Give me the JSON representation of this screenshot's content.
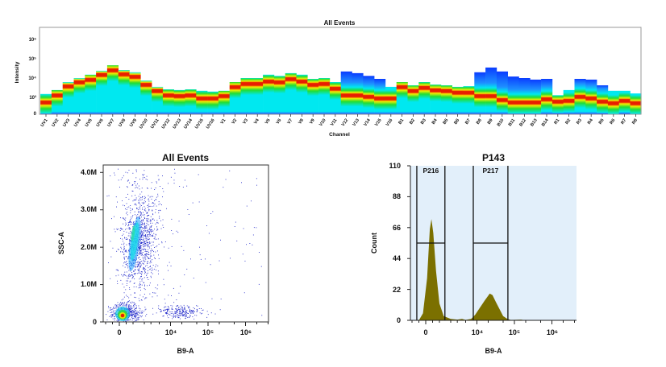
{
  "chart_data": [
    {
      "type": "heatmap",
      "title": "All Events",
      "xlabel": "Channel",
      "ylabel": "Intensity",
      "y_scale": "log (linear near 0)",
      "y_ticks": [
        "0",
        "10³",
        "10⁴",
        "10⁵",
        "10⁶"
      ],
      "colormap": [
        "#0a3cff",
        "#1e8fff",
        "#00e8f0",
        "#22dd33",
        "#f5ee00",
        "#e81e00"
      ],
      "channels": [
        "UV1",
        "UV2",
        "UV3",
        "UV4",
        "UV5",
        "UV6",
        "UV7",
        "UV8",
        "UV9",
        "UV10",
        "UV11",
        "UV12",
        "UV13",
        "UV14",
        "UV15",
        "UV16",
        "V1",
        "V2",
        "V3",
        "V4",
        "V5",
        "V6",
        "V7",
        "V8",
        "V9",
        "V10",
        "V11",
        "V12",
        "V13",
        "V14",
        "V15",
        "V16",
        "B1",
        "B2",
        "B3",
        "B4",
        "B5",
        "B6",
        "B7",
        "B8",
        "B9",
        "B10",
        "B11",
        "B12",
        "B13",
        "B14",
        "R1",
        "R2",
        "R3",
        "R4",
        "R5",
        "R6",
        "R7",
        "R8"
      ],
      "max_intensity": [
        1500,
        2400,
        6200,
        10000,
        15000,
        24000,
        46000,
        26000,
        20000,
        7500,
        3500,
        2600,
        2400,
        2600,
        2200,
        2000,
        2200,
        6200,
        10000,
        10000,
        15000,
        13000,
        18000,
        15000,
        9100,
        10000,
        6200,
        22000,
        18000,
        13000,
        9100,
        3500,
        6200,
        4200,
        6200,
        4600,
        4200,
        3500,
        3800,
        20000,
        35000,
        22000,
        12000,
        10000,
        8300,
        9100,
        1300,
        2400,
        9100,
        8300,
        4200,
        2200,
        2200,
        1600
      ],
      "peak_intensity": [
        700,
        1300,
        3800,
        6200,
        8300,
        15000,
        26000,
        16000,
        12000,
        4600,
        2200,
        1300,
        1200,
        1300,
        950,
        950,
        1200,
        3500,
        5100,
        5100,
        6800,
        6200,
        9100,
        6800,
        4600,
        5100,
        2900,
        1300,
        1300,
        1100,
        950,
        950,
        3500,
        2200,
        3200,
        2400,
        2200,
        1800,
        1800,
        1200,
        1200,
        850,
        700,
        700,
        700,
        900,
        750,
        800,
        1100,
        950,
        750,
        650,
        800,
        650
      ]
    },
    {
      "type": "scatter",
      "title": "All Events",
      "xlabel": "B9-A",
      "ylabel": "SSC-A",
      "x_scale": "biexponential",
      "x_ticks": [
        "0",
        "10⁴",
        "10⁵",
        "10⁶"
      ],
      "y_ticks": [
        "0",
        "1.0M",
        "2.0M",
        "3.0M",
        "4.0M"
      ],
      "ylim": [
        0,
        4200000
      ],
      "point_color": "#1a22c8",
      "populations": [
        {
          "x_range": [
            -600,
            1500
          ],
          "y_range": [
            0,
            500000
          ],
          "count": 500,
          "density": "high"
        },
        {
          "x_range": [
            200,
            4000
          ],
          "y_range": [
            900000,
            3400000
          ],
          "count": 900,
          "density": "medium"
        },
        {
          "x_range": [
            5000,
            70000
          ],
          "y_range": [
            100000,
            450000
          ],
          "count": 220,
          "density": "low"
        },
        {
          "x_range": [
            -500,
            8000
          ],
          "y_range": [
            300000,
            4100000
          ],
          "count": 300,
          "density": "low"
        },
        {
          "x_range": [
            3000,
            3000000
          ],
          "y_range": [
            0,
            4100000
          ],
          "count": 80,
          "density": "sparse"
        }
      ]
    },
    {
      "type": "area",
      "title": "P143",
      "xlabel": "B9-A",
      "ylabel": "Count",
      "x_scale": "biexponential",
      "x_ticks": [
        "0",
        "10⁴",
        "10⁵",
        "10⁶"
      ],
      "y_ticks": [
        "0",
        "22",
        "44",
        "66",
        "88",
        "110"
      ],
      "ylim": [
        0,
        110
      ],
      "fill_color": "#7b7000",
      "background_color": "#e2effa",
      "x": [
        -700,
        -500,
        -200,
        100,
        300,
        420,
        550,
        750,
        1000,
        1300,
        2000,
        3000,
        4000,
        5000,
        7000,
        9000,
        12000,
        16000,
        22000,
        26000,
        32000,
        40000,
        50000,
        65000,
        80000,
        150000,
        200000,
        4000000
      ],
      "y": [
        0,
        0,
        5,
        30,
        65,
        72,
        62,
        35,
        12,
        3,
        1,
        0.5,
        1,
        0.3,
        1,
        4,
        9,
        14,
        19,
        18,
        13,
        8,
        3,
        1,
        0.3,
        0.5,
        0,
        0
      ],
      "gates": [
        {
          "name": "P216",
          "x_range": [
            -650,
            1400
          ],
          "level": 55
        },
        {
          "name": "P217",
          "x_range": [
            8000,
            67000
          ],
          "level": 55
        }
      ]
    }
  ]
}
